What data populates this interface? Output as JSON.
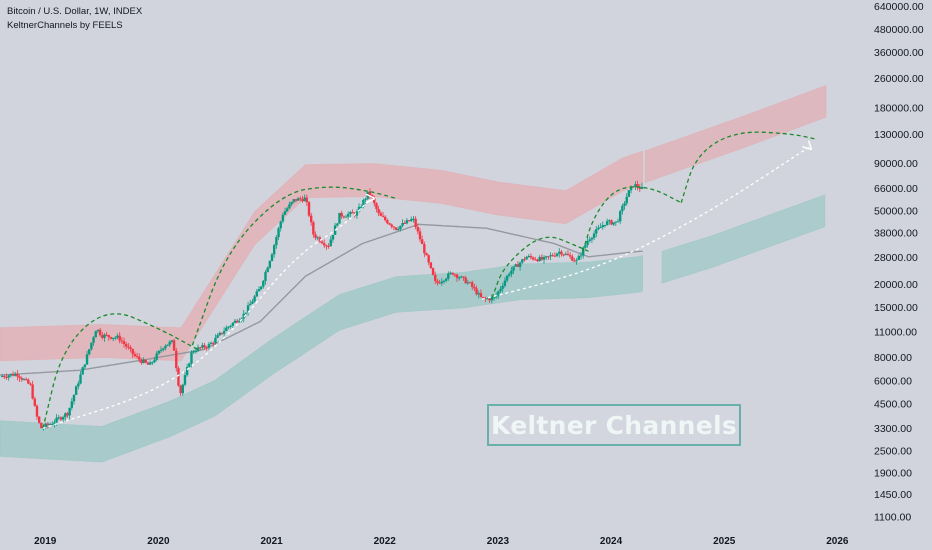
{
  "header": {
    "symbol_line": "Bitcoin / U.S. Dollar, 1W, INDEX",
    "indicator_line": "KeltnerChannels by FEELS"
  },
  "watermark": "Keltner Channels",
  "colors": {
    "background": "#d1d4dc",
    "up_candle": "#089981",
    "down_candle": "#f23645",
    "upper_band": "#e8a3a8",
    "lower_band": "#8cc3bf",
    "basis": "#9598a1",
    "projection_dashed": "#1b8a2e",
    "trend_dashed": "#ffffff"
  },
  "chart_data": {
    "type": "candlestick",
    "title": "Bitcoin / U.S. Dollar, 1W, INDEX",
    "subtitle": "KeltnerChannels by FEELS",
    "y_scale": "log",
    "ylim": [
      950,
      690000
    ],
    "xlim": [
      2018.6,
      2026.2
    ],
    "y_ticks": [
      "640000.00",
      "480000.00",
      "360000.00",
      "260000.00",
      "180000.00",
      "130000.00",
      "90000.00",
      "66000.00",
      "50000.00",
      "38000.00",
      "28000.00",
      "20000.00",
      "15000.00",
      "11000.00",
      "8000.00",
      "6000.00",
      "4500.00",
      "3300.00",
      "2500.00",
      "1900.00",
      "1450.00",
      "1100.00"
    ],
    "x_ticks": [
      "2019",
      "2020",
      "2021",
      "2022",
      "2023",
      "2024",
      "2025",
      "2026"
    ],
    "price_path": [
      [
        2018.6,
        6300
      ],
      [
        2018.75,
        6500
      ],
      [
        2018.87,
        5600
      ],
      [
        2018.92,
        3900
      ],
      [
        2018.96,
        3300
      ],
      [
        2019.05,
        3500
      ],
      [
        2019.2,
        4000
      ],
      [
        2019.35,
        7500
      ],
      [
        2019.45,
        11500
      ],
      [
        2019.5,
        10500
      ],
      [
        2019.65,
        10200
      ],
      [
        2019.8,
        8000
      ],
      [
        2019.92,
        7200
      ],
      [
        2020.05,
        9300
      ],
      [
        2020.13,
        9700
      ],
      [
        2020.19,
        5000
      ],
      [
        2020.3,
        8700
      ],
      [
        2020.45,
        9300
      ],
      [
        2020.6,
        11500
      ],
      [
        2020.75,
        13500
      ],
      [
        2020.9,
        19000
      ],
      [
        2021.0,
        29000
      ],
      [
        2021.1,
        48000
      ],
      [
        2021.2,
        57000
      ],
      [
        2021.3,
        58000
      ],
      [
        2021.37,
        37000
      ],
      [
        2021.5,
        32000
      ],
      [
        2021.6,
        47000
      ],
      [
        2021.75,
        48000
      ],
      [
        2021.86,
        63000
      ],
      [
        2021.95,
        47000
      ],
      [
        2022.1,
        40000
      ],
      [
        2022.25,
        45000
      ],
      [
        2022.35,
        30000
      ],
      [
        2022.45,
        20000
      ],
      [
        2022.6,
        23000
      ],
      [
        2022.75,
        20000
      ],
      [
        2022.86,
        16500
      ],
      [
        2022.97,
        16700
      ],
      [
        2023.1,
        23000
      ],
      [
        2023.25,
        28000
      ],
      [
        2023.4,
        27000
      ],
      [
        2023.55,
        30000
      ],
      [
        2023.7,
        26500
      ],
      [
        2023.8,
        35000
      ],
      [
        2023.95,
        43000
      ],
      [
        2024.05,
        43000
      ],
      [
        2024.15,
        62000
      ],
      [
        2024.2,
        69000
      ],
      [
        2024.28,
        65000
      ]
    ],
    "keltner_upper": [
      [
        2018.6,
        9400
      ],
      [
        2019.5,
        9800
      ],
      [
        2020.2,
        9400
      ],
      [
        2020.85,
        40000
      ],
      [
        2021.3,
        72000
      ],
      [
        2021.9,
        73000
      ],
      [
        2022.5,
        67000
      ],
      [
        2023.0,
        58000
      ],
      [
        2023.6,
        52000
      ],
      [
        2024.1,
        78000
      ],
      [
        2024.6,
        100000
      ],
      [
        2025.2,
        135000
      ],
      [
        2025.9,
        195000
      ]
    ],
    "keltner_basis": [
      [
        2018.6,
        6400
      ],
      [
        2019.3,
        6800
      ],
      [
        2019.9,
        7800
      ],
      [
        2020.4,
        8800
      ],
      [
        2020.9,
        12500
      ],
      [
        2021.3,
        22000
      ],
      [
        2021.8,
        33000
      ],
      [
        2022.3,
        42000
      ],
      [
        2022.9,
        40000
      ],
      [
        2023.5,
        33000
      ],
      [
        2023.8,
        28000
      ],
      [
        2024.25,
        30000
      ]
    ],
    "keltner_lower": [
      [
        2018.6,
        2900
      ],
      [
        2019.5,
        2700
      ],
      [
        2020.1,
        3700
      ],
      [
        2020.5,
        4800
      ],
      [
        2021.0,
        8000
      ],
      [
        2021.6,
        14000
      ],
      [
        2022.1,
        17500
      ],
      [
        2022.7,
        18500
      ],
      [
        2023.2,
        20500
      ],
      [
        2023.8,
        21000
      ],
      [
        2024.25,
        22500
      ],
      [
        2024.9,
        30000
      ],
      [
        2025.9,
        50000
      ]
    ],
    "projections": [
      {
        "style": "green-dashed",
        "points": [
          [
            2018.98,
            3300
          ],
          [
            2019.15,
            9000
          ],
          [
            2019.55,
            15000
          ],
          [
            2020.0,
            11500
          ],
          [
            2020.35,
            8800
          ]
        ]
      },
      {
        "style": "green-dashed",
        "points": [
          [
            2020.3,
            9300
          ],
          [
            2020.6,
            30000
          ],
          [
            2021.1,
            62000
          ],
          [
            2021.5,
            68000
          ],
          [
            2021.85,
            64000
          ],
          [
            2022.1,
            58000
          ]
        ]
      },
      {
        "style": "green-dashed",
        "points": [
          [
            2022.95,
            16800
          ],
          [
            2023.05,
            25000
          ],
          [
            2023.4,
            38000
          ],
          [
            2023.7,
            32000
          ],
          [
            2023.8,
            30000
          ]
        ]
      },
      {
        "style": "green-dashed",
        "points": [
          [
            2023.75,
            30000
          ],
          [
            2023.85,
            47000
          ],
          [
            2024.05,
            67000
          ],
          [
            2024.35,
            67000
          ],
          [
            2024.62,
            55000
          ]
        ]
      },
      {
        "style": "green-dashed",
        "points": [
          [
            2024.62,
            55000
          ],
          [
            2024.75,
            100000
          ],
          [
            2025.1,
            135000
          ],
          [
            2025.6,
            130000
          ],
          [
            2025.8,
            122000
          ]
        ]
      },
      {
        "style": "white-dashed-arrow",
        "points": [
          [
            2018.98,
            3300
          ],
          [
            2020.0,
            5200
          ],
          [
            2020.6,
            10000
          ],
          [
            2021.2,
            28000
          ],
          [
            2021.65,
            42000
          ],
          [
            2021.88,
            58000
          ]
        ]
      },
      {
        "style": "white-dashed-arrow",
        "points": [
          [
            2022.86,
            16500
          ],
          [
            2023.4,
            20000
          ],
          [
            2023.9,
            25000
          ],
          [
            2024.35,
            33000
          ],
          [
            2025.0,
            55000
          ],
          [
            2025.75,
            110000
          ]
        ]
      }
    ],
    "future_zones": [
      {
        "band": "upper",
        "from": 2024.3,
        "to": 2025.9
      },
      {
        "band": "lower",
        "from": 2024.45,
        "to": 2025.9
      }
    ]
  }
}
